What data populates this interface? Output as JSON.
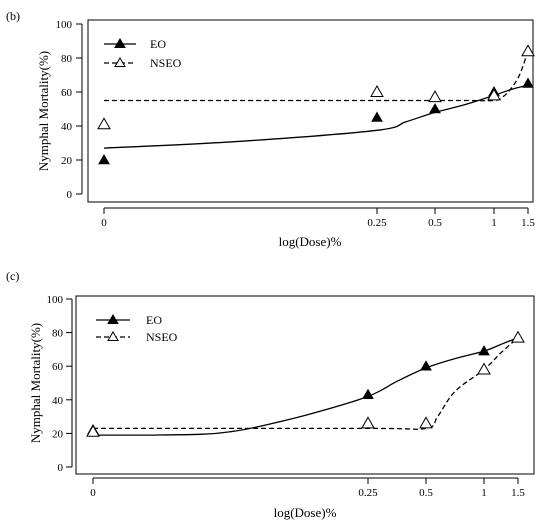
{
  "chart_data": [
    {
      "type": "line",
      "panel_label": "(b)",
      "xlabel": "log(Dose)%",
      "ylabel": "Nymphal Mortality(%)",
      "x_ticks": [
        0,
        0.25,
        0.5,
        1,
        1.5
      ],
      "x_tick_labels": [
        "0",
        "0.25",
        "0.5",
        "1",
        "1.5"
      ],
      "y_ticks": [
        0,
        20,
        40,
        60,
        80,
        100
      ],
      "y_tick_labels": [
        "0",
        "20",
        "40",
        "60",
        "80",
        "100"
      ],
      "ylim": [
        0,
        100
      ],
      "legend_position": "top-left",
      "series": [
        {
          "name": "EO",
          "marker": "filled-triangle",
          "line_style": "solid",
          "points_x": [
            0,
            0.25,
            0.5,
            1,
            1.5
          ],
          "points_y": [
            20,
            45,
            50,
            60,
            65
          ],
          "fit_x": [
            0,
            0.125,
            0.25,
            0.375,
            0.5,
            0.75,
            1,
            1.25,
            1.5
          ],
          "fit_y": [
            27,
            31,
            37.5,
            42.5,
            48,
            52.5,
            58,
            61.5,
            64
          ]
        },
        {
          "name": "NSEO",
          "marker": "open-triangle",
          "line_style": "dashed",
          "points_x": [
            0,
            0.25,
            0.5,
            1,
            1.5
          ],
          "points_y": [
            41,
            60,
            57,
            58,
            84
          ],
          "fit_x": [
            0,
            0.25,
            0.5,
            0.75,
            1,
            1.125,
            1.25,
            1.375,
            1.5
          ],
          "fit_y": [
            55,
            55,
            55,
            55,
            55,
            57,
            62,
            70,
            84
          ]
        }
      ]
    },
    {
      "type": "line",
      "panel_label": "(c)",
      "xlabel": "log(Dose)%",
      "ylabel": "Nymphal Mortality(%)",
      "x_ticks": [
        0,
        0.25,
        0.5,
        1,
        1.5
      ],
      "x_tick_labels": [
        "0",
        "0.25",
        "0.5",
        "1",
        "1.5"
      ],
      "y_ticks": [
        0,
        20,
        40,
        60,
        80,
        100
      ],
      "y_tick_labels": [
        "0",
        "20",
        "40",
        "60",
        "80",
        "100"
      ],
      "ylim": [
        0,
        100
      ],
      "legend_position": "top-left",
      "series": [
        {
          "name": "EO",
          "marker": "filled-triangle",
          "line_style": "solid",
          "points_x": [
            0,
            0.25,
            0.5,
            1,
            1.5
          ],
          "points_y": [
            22,
            43,
            60,
            69,
            77
          ],
          "fit_x": [
            0,
            0.05,
            0.1,
            0.125,
            0.15,
            0.2,
            0.25,
            0.375,
            0.5,
            0.75,
            1,
            1.25,
            1.5
          ],
          "fit_y": [
            19,
            19,
            19.5,
            21,
            24,
            32,
            42,
            51,
            59,
            64.5,
            69,
            73,
            77
          ]
        },
        {
          "name": "NSEO",
          "marker": "open-triangle",
          "line_style": "dashed",
          "points_x": [
            0,
            0.25,
            0.5,
            1,
            1.5
          ],
          "points_y": [
            21,
            26,
            26,
            58,
            77
          ],
          "fit_x": [
            0,
            0.25,
            0.5,
            0.6,
            0.75,
            1,
            1.25,
            1.5
          ],
          "fit_y": [
            23,
            23,
            23,
            30,
            45,
            58,
            68,
            77
          ]
        }
      ]
    }
  ]
}
